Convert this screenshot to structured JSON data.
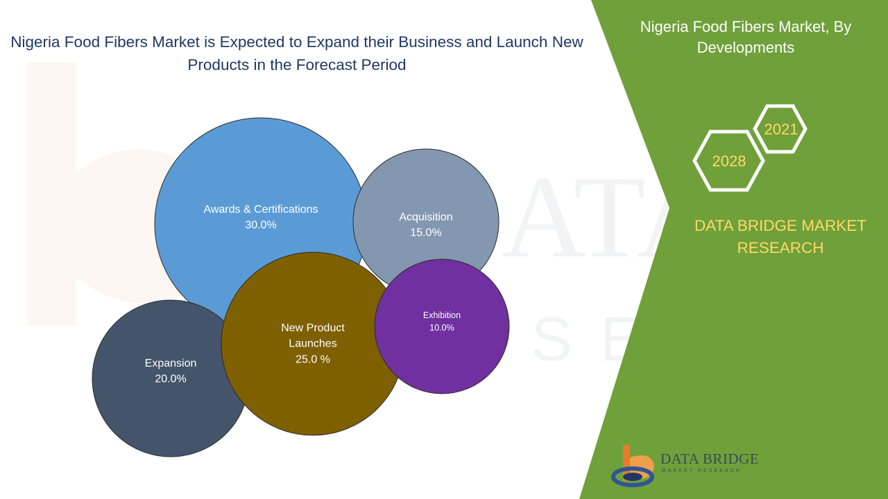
{
  "header": {
    "title": "Nigeria Food Fibers Market is Expected to Expand their Business and Launch New Products in the Forecast Period"
  },
  "side_panel": {
    "title": "Nigeria Food Fibers Market, By Developments",
    "year_badges": [
      "2021",
      "2028"
    ],
    "brand_text": "DATA BRIDGE MARKET RESEARCH",
    "background_color": "#70a03a",
    "brand_color": "#ffd966"
  },
  "logo": {
    "text": "DATA BRIDGE",
    "subtext": "MARKET RESEARCH",
    "icon": "data-bridge-logo-icon"
  },
  "chart_data": {
    "type": "bubble",
    "title": "Nigeria Food Fibers Market, By Developments",
    "series": [
      {
        "name": "Awards & Certifications",
        "value": 30.0,
        "label": "30.0%",
        "color": "#5b9bd5"
      },
      {
        "name": "Acquisition",
        "value": 15.0,
        "label": "15.0%",
        "color": "#8497b0"
      },
      {
        "name": "Expansion",
        "value": 20.0,
        "label": "20.0%",
        "color": "#44546a"
      },
      {
        "name": "New Product Launches",
        "value": 25.0,
        "label": "25.0 %",
        "color": "#7f6000"
      },
      {
        "name": "Exhibition",
        "value": 10.0,
        "label": "10.0%",
        "color": "#7030a0"
      }
    ]
  }
}
